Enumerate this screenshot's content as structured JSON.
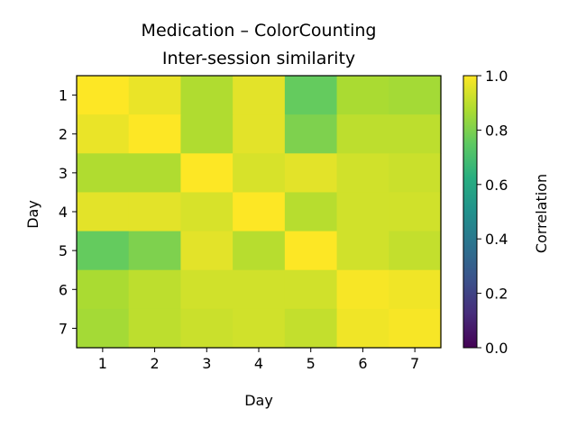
{
  "chart_data": {
    "type": "heatmap",
    "title_line1": "Medication – ColorCounting",
    "title_line2": "Inter-session similarity",
    "xlabel": "Day",
    "ylabel": "Day",
    "x_categories": [
      "1",
      "2",
      "3",
      "4",
      "5",
      "6",
      "7"
    ],
    "y_categories": [
      "1",
      "2",
      "3",
      "4",
      "5",
      "6",
      "7"
    ],
    "values": [
      [
        1.0,
        0.97,
        0.88,
        0.96,
        0.76,
        0.87,
        0.86
      ],
      [
        0.97,
        1.0,
        0.88,
        0.96,
        0.8,
        0.9,
        0.9
      ],
      [
        0.88,
        0.88,
        1.0,
        0.94,
        0.96,
        0.93,
        0.92
      ],
      [
        0.96,
        0.96,
        0.94,
        1.0,
        0.89,
        0.93,
        0.93
      ],
      [
        0.76,
        0.8,
        0.96,
        0.89,
        1.0,
        0.93,
        0.91
      ],
      [
        0.87,
        0.9,
        0.93,
        0.93,
        0.93,
        0.99,
        0.98
      ],
      [
        0.86,
        0.9,
        0.92,
        0.93,
        0.91,
        0.98,
        0.99
      ]
    ],
    "vmin": 0.0,
    "vmax": 1.0,
    "colormap": "viridis",
    "colorbar": {
      "label": "Correlation",
      "ticks": [
        "0.0",
        "0.2",
        "0.4",
        "0.6",
        "0.8",
        "1.0"
      ]
    },
    "grid": false
  }
}
